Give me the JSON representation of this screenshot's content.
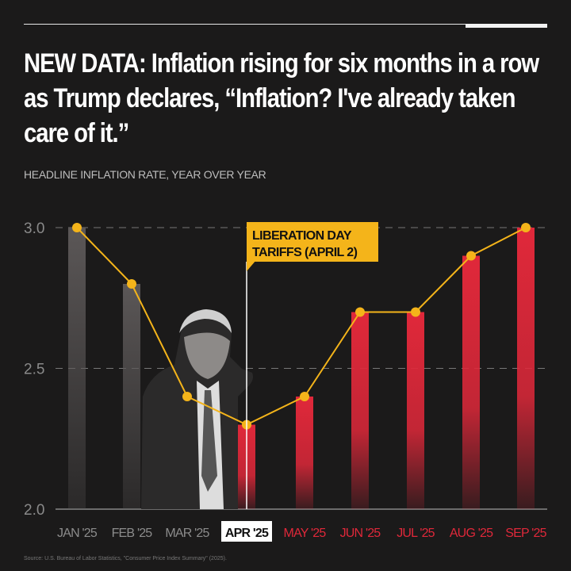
{
  "header": {
    "title": "NEW DATA: Inflation rising for six months in a row as Trump declares, “Inflation? I've already taken care of it.”",
    "subtitle": "HEADLINE INFLATION RATE, YEAR OVER YEAR"
  },
  "chart_data": {
    "type": "bar",
    "title": "",
    "xlabel": "",
    "ylabel": "",
    "categories": [
      "JAN '25",
      "FEB '25",
      "MAR '25",
      "APR '25",
      "MAY '25",
      "JUN '25",
      "JUL '25",
      "AUG '25",
      "SEP '25"
    ],
    "values": [
      3.0,
      2.8,
      2.4,
      2.3,
      2.4,
      2.7,
      2.7,
      2.9,
      3.0
    ],
    "overlay_line": true,
    "ylim": [
      2.0,
      3.0
    ],
    "yticks": [
      "2.0",
      "2.5",
      "3.0"
    ],
    "grid": "dashed horizontal",
    "highlighted_category": "APR '25",
    "annotation": {
      "category": "APR '25",
      "text_lines": [
        "LIBERATION DAY",
        "TARIFFS (APRIL 2)"
      ]
    },
    "colors": {
      "before": "#5b5757",
      "after": "#e0283a",
      "line": "#f4b41a",
      "annotation_bg": "#f4b41a"
    }
  },
  "footer": {
    "source": "Source: U.S. Bureau of Labor Statistics, \"Consumer Price Index Summary\" (2025)."
  }
}
